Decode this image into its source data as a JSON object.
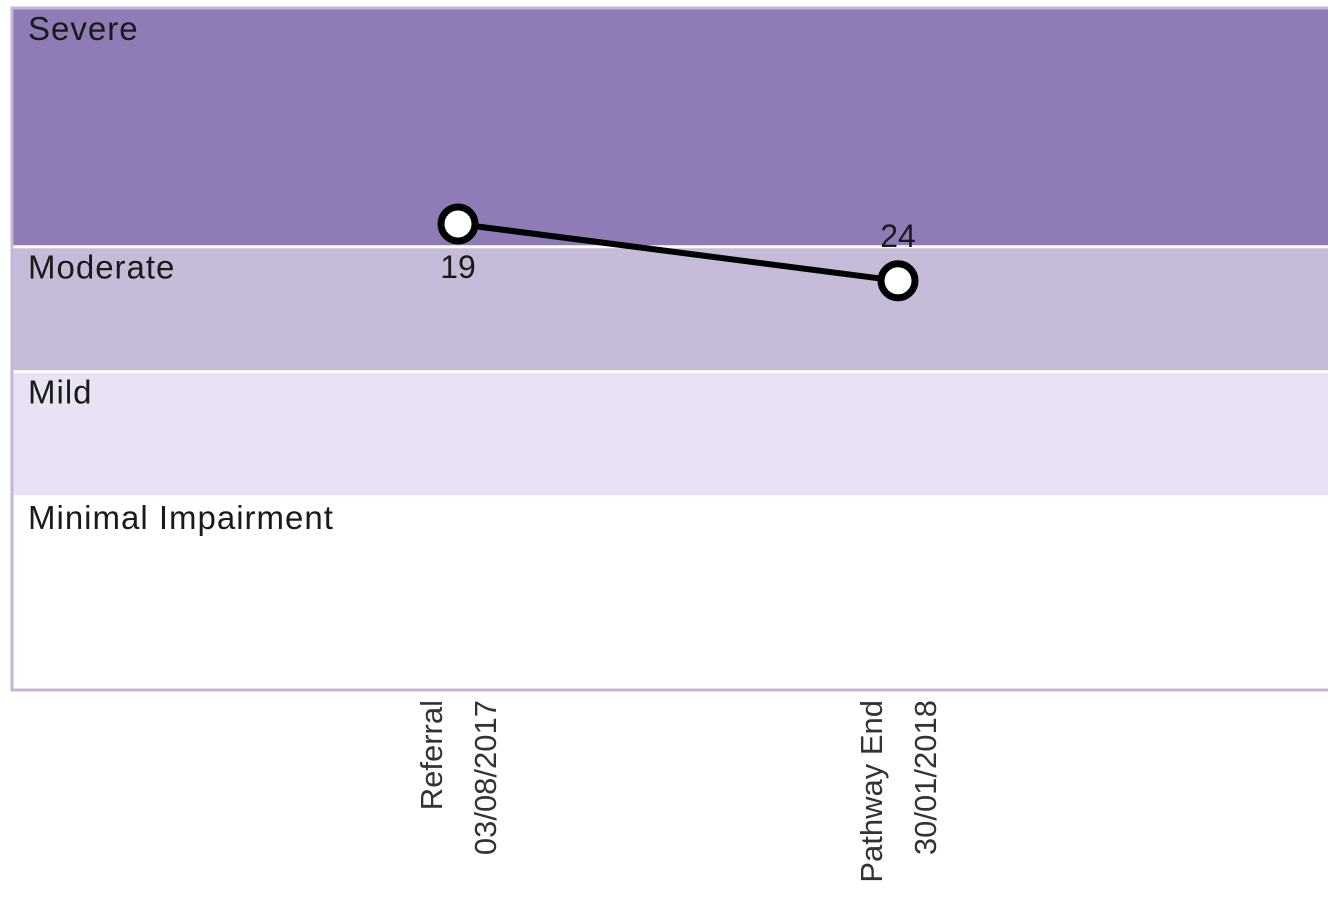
{
  "chart_data": {
    "type": "line",
    "categories": [
      [
        "Referral",
        "03/08/2017"
      ],
      [
        "Pathway End",
        "30/01/2018"
      ]
    ],
    "series": [
      {
        "color": "#000000",
        "values": [
          19,
          24
        ]
      }
    ],
    "ylim": [
      0,
      60
    ],
    "y_inverted": true,
    "bands": [
      {
        "label": "Severe",
        "from": 0,
        "to": 21,
        "color": "#8f7bb5"
      },
      {
        "label": "Moderate",
        "from": 21,
        "to": 32,
        "color": "#c6bcd9"
      },
      {
        "label": "Mild",
        "from": 32,
        "to": 43,
        "color": "#e9e2f4"
      },
      {
        "label": "Minimal Impairment",
        "from": 43,
        "to": 60,
        "color": "#ffffff"
      }
    ]
  }
}
